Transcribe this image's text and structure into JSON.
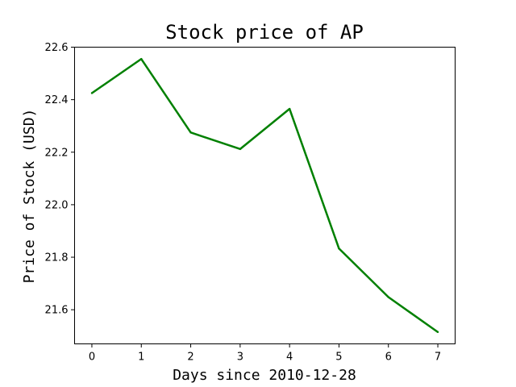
{
  "chart_data": {
    "type": "line",
    "title": "Stock price of AP",
    "xlabel": "Days since 2010-12-28",
    "ylabel": "Price of Stock (USD)",
    "x": [
      0,
      1,
      2,
      3,
      4,
      5,
      6,
      7
    ],
    "series": [
      {
        "values": [
          22.425,
          22.555,
          22.275,
          22.212,
          22.365,
          21.833,
          21.648,
          21.515
        ],
        "color": "#008000"
      }
    ],
    "xlim": [
      -0.35,
      7.35
    ],
    "ylim": [
      21.47,
      22.6
    ],
    "xticks": [
      "0",
      "1",
      "2",
      "3",
      "4",
      "5",
      "6",
      "7"
    ],
    "yticks": [
      "21.6",
      "21.8",
      "22.0",
      "22.2",
      "22.4",
      "22.6"
    ],
    "grid": false
  }
}
